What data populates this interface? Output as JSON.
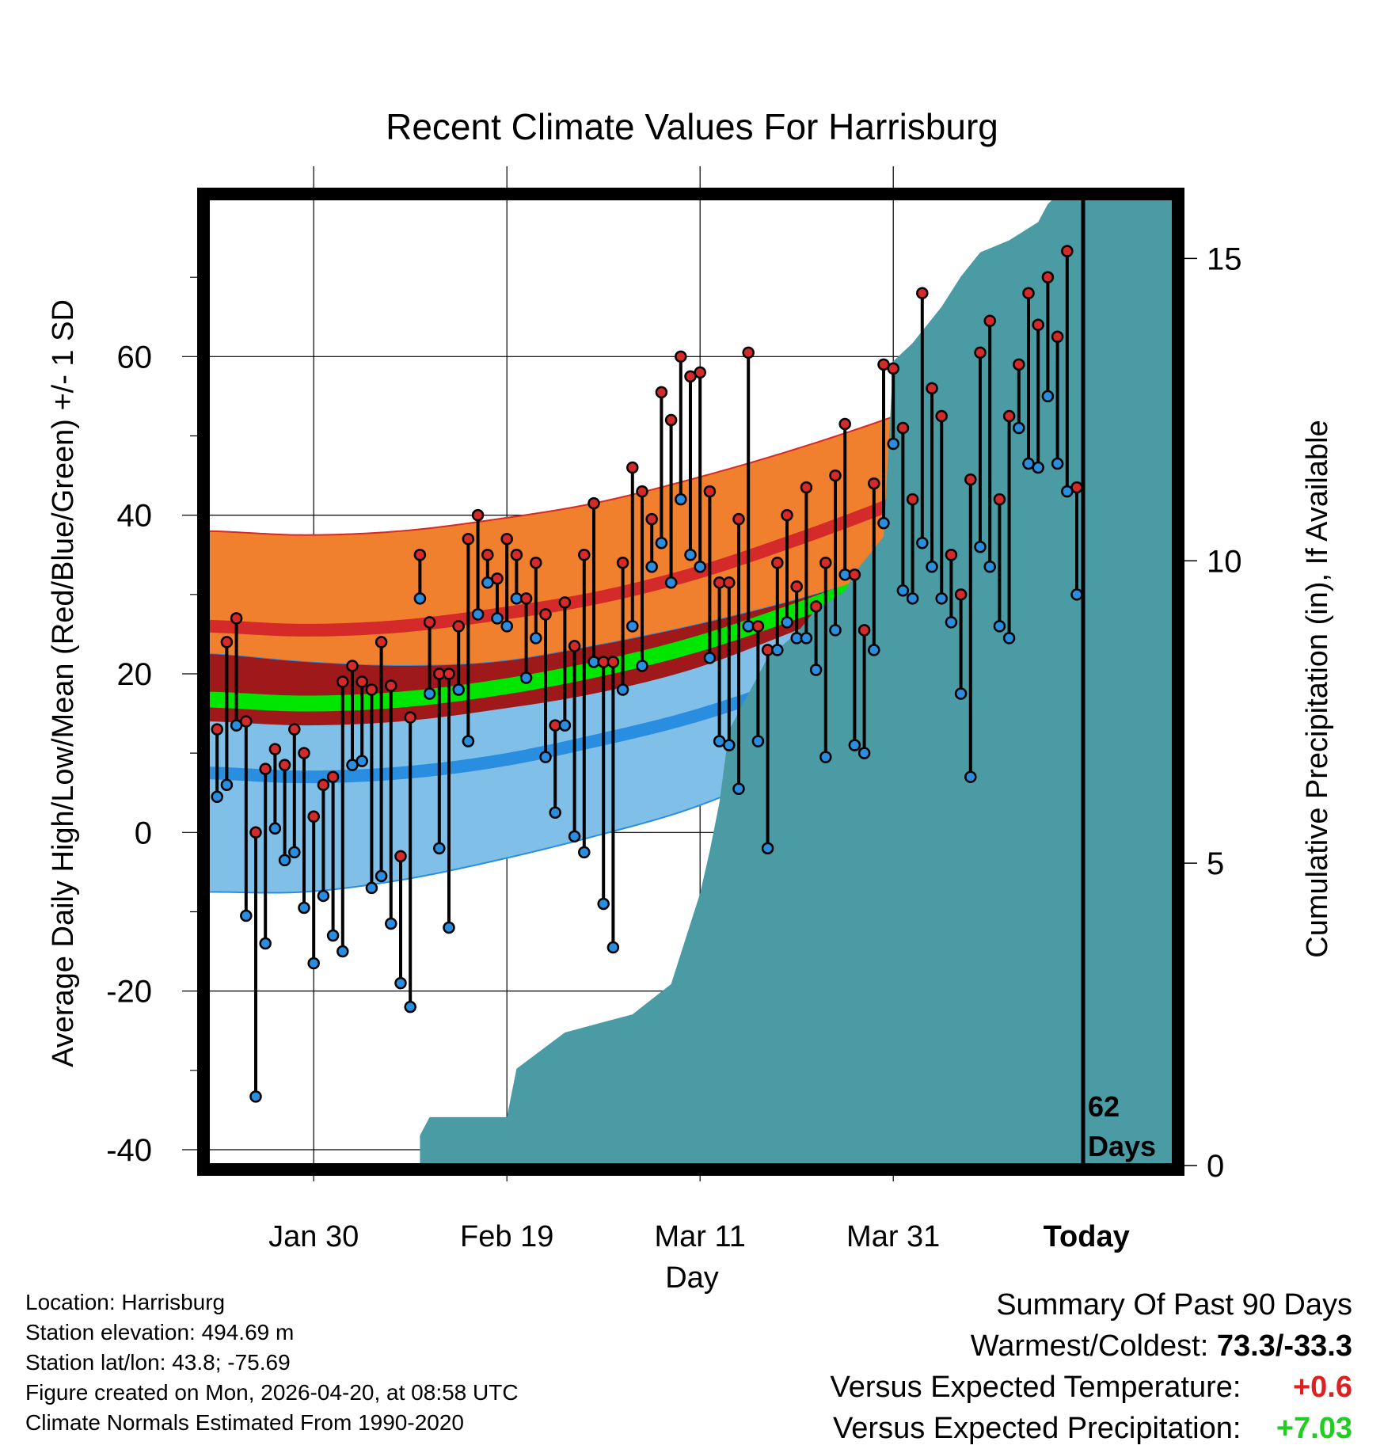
{
  "chart_data": {
    "type": "line",
    "title": "Recent Climate Values For Harrisburg",
    "xlabel": "Day",
    "ylabel": "Average Daily High/Low/Mean (Red/Blue/Green) +/- 1 SD",
    "y2label": "Cumulative Precipitation (in), If Available",
    "x_ticks": [
      "Jan 30",
      "Feb 19",
      "Mar 11",
      "Mar 31",
      "Today"
    ],
    "x_tick_days": [
      10,
      30,
      50,
      70,
      90
    ],
    "xlim": [
      -1,
      99
    ],
    "ylim": [
      -42,
      80
    ],
    "y_ticks": [
      -40,
      -20,
      0,
      20,
      40,
      60
    ],
    "y2lim": [
      0,
      16
    ],
    "y2_ticks": [
      0,
      5,
      10,
      15
    ],
    "today_label_1": "62",
    "today_label_2": "Days",
    "normal_days": [
      -1,
      9,
      19,
      29,
      39,
      49,
      59,
      69,
      79,
      89,
      99
    ],
    "normal_high_mean": [
      26,
      25.5,
      26,
      27.5,
      29.5,
      32.5,
      36.5,
      41,
      46,
      51.5,
      57
    ],
    "normal_high_sd": [
      12,
      12,
      12,
      12,
      12,
      12,
      11.5,
      11,
      10.5,
      10.5,
      10.5
    ],
    "normal_low_mean": [
      7.5,
      7,
      7.5,
      9,
      11.5,
      14.5,
      18.5,
      23,
      27.5,
      32,
      36.5
    ],
    "normal_low_sd": [
      15,
      14.5,
      13.5,
      12.5,
      12,
      11.5,
      10.5,
      9.5,
      8.5,
      8,
      7.5
    ],
    "series": [
      {
        "name": "High",
        "color": "#d42a2a",
        "values": [
          13,
          24,
          27,
          14,
          0,
          8,
          10.5,
          8.5,
          13,
          10,
          2,
          6,
          7,
          19,
          21,
          19,
          18,
          24,
          18.5,
          -3,
          14.5,
          35,
          26.5,
          20,
          20,
          26,
          37,
          40,
          35,
          32,
          37,
          35,
          29.5,
          34,
          27.5,
          13.5,
          29,
          23.5,
          35,
          41.5,
          21.5,
          21.5,
          34,
          46,
          43,
          39.5,
          55.5,
          52,
          60,
          57.5,
          58,
          43,
          31.5,
          31.5,
          39.5,
          60.5,
          26,
          23,
          34,
          40,
          31,
          43.5,
          28.5,
          34,
          45,
          51.5,
          32.5,
          25.5,
          44,
          59,
          58.5,
          51,
          42,
          68,
          56,
          52.5,
          35,
          30,
          44.5,
          60.5,
          64.5,
          42,
          52.5,
          59,
          68,
          64,
          70,
          62.5,
          73.3,
          43.5
        ]
      },
      {
        "name": "Low",
        "color": "#2a8ee0",
        "values": [
          4.5,
          6,
          13.5,
          -10.5,
          -33.3,
          -14,
          0.5,
          -3.5,
          -2.5,
          -9.5,
          -16.5,
          -8,
          -13,
          -15,
          8.5,
          9,
          -7,
          -5.5,
          -11.5,
          -19,
          -22,
          29.5,
          17.5,
          -2,
          -12,
          18,
          11.5,
          27.5,
          31.5,
          27,
          26,
          29.5,
          19.5,
          24.5,
          9.5,
          2.5,
          13.5,
          -0.5,
          -2.5,
          21.5,
          -9,
          -14.5,
          18,
          26,
          21,
          33.5,
          36.5,
          31.5,
          42,
          35,
          33.5,
          22,
          11.5,
          11,
          5.5,
          26,
          11.5,
          -2,
          23,
          26.5,
          24.5,
          24.5,
          20.5,
          9.5,
          25.5,
          32.5,
          11,
          10,
          23,
          39,
          49,
          30.5,
          29.5,
          36.5,
          33.5,
          29.5,
          26.5,
          17.5,
          7,
          36,
          33.5,
          26,
          24.5,
          51,
          46.5,
          46,
          55,
          46.5,
          43,
          30
        ]
      }
    ],
    "precip_days": [
      21,
      22,
      30,
      31,
      36,
      43,
      47,
      48,
      50,
      51,
      52,
      53,
      55,
      57,
      60,
      62,
      65,
      66,
      69,
      70,
      72,
      74,
      75,
      77,
      79,
      82,
      85,
      86,
      88,
      89,
      99
    ],
    "precip_cum": [
      0.5,
      0.8,
      0.8,
      1.6,
      2.2,
      2.5,
      3.0,
      3.5,
      4.5,
      5.2,
      6.0,
      7.2,
      7.8,
      8.4,
      8.8,
      9.2,
      9.5,
      9.8,
      10.4,
      13.3,
      13.6,
      14.0,
      14.2,
      14.7,
      15.1,
      15.3,
      15.6,
      15.9,
      16.2,
      16.2,
      16.2
    ]
  },
  "colors": {
    "high_band": "#f07f2e",
    "high_mean": "#d42a2a",
    "low_band": "#80c0e8",
    "low_mean": "#2a8ee0",
    "mean": "#00e600",
    "overlap": "#a01010",
    "precip": "#4a9ba3",
    "warm": "#e02020",
    "wet": "#22cc22"
  },
  "info": {
    "location": "Location: Harrisburg",
    "elevation": "Station elevation: 494.69 m",
    "latlon": "Station lat/lon: 43.8; -75.69",
    "created": "Figure created on Mon, 2026-04-20, at 08:58 UTC",
    "normals": "Climate Normals Estimated From 1990-2020"
  },
  "summary": {
    "heading": "Summary Of Past 90 Days",
    "warm_label": "Warmest/Coldest: ",
    "warm_value": "73.3/-33.3",
    "temp_label": "Versus Expected Temperature: ",
    "temp_value": "+0.6",
    "precip_label": "Versus Expected Precipitation: ",
    "precip_value": "+7.03"
  }
}
